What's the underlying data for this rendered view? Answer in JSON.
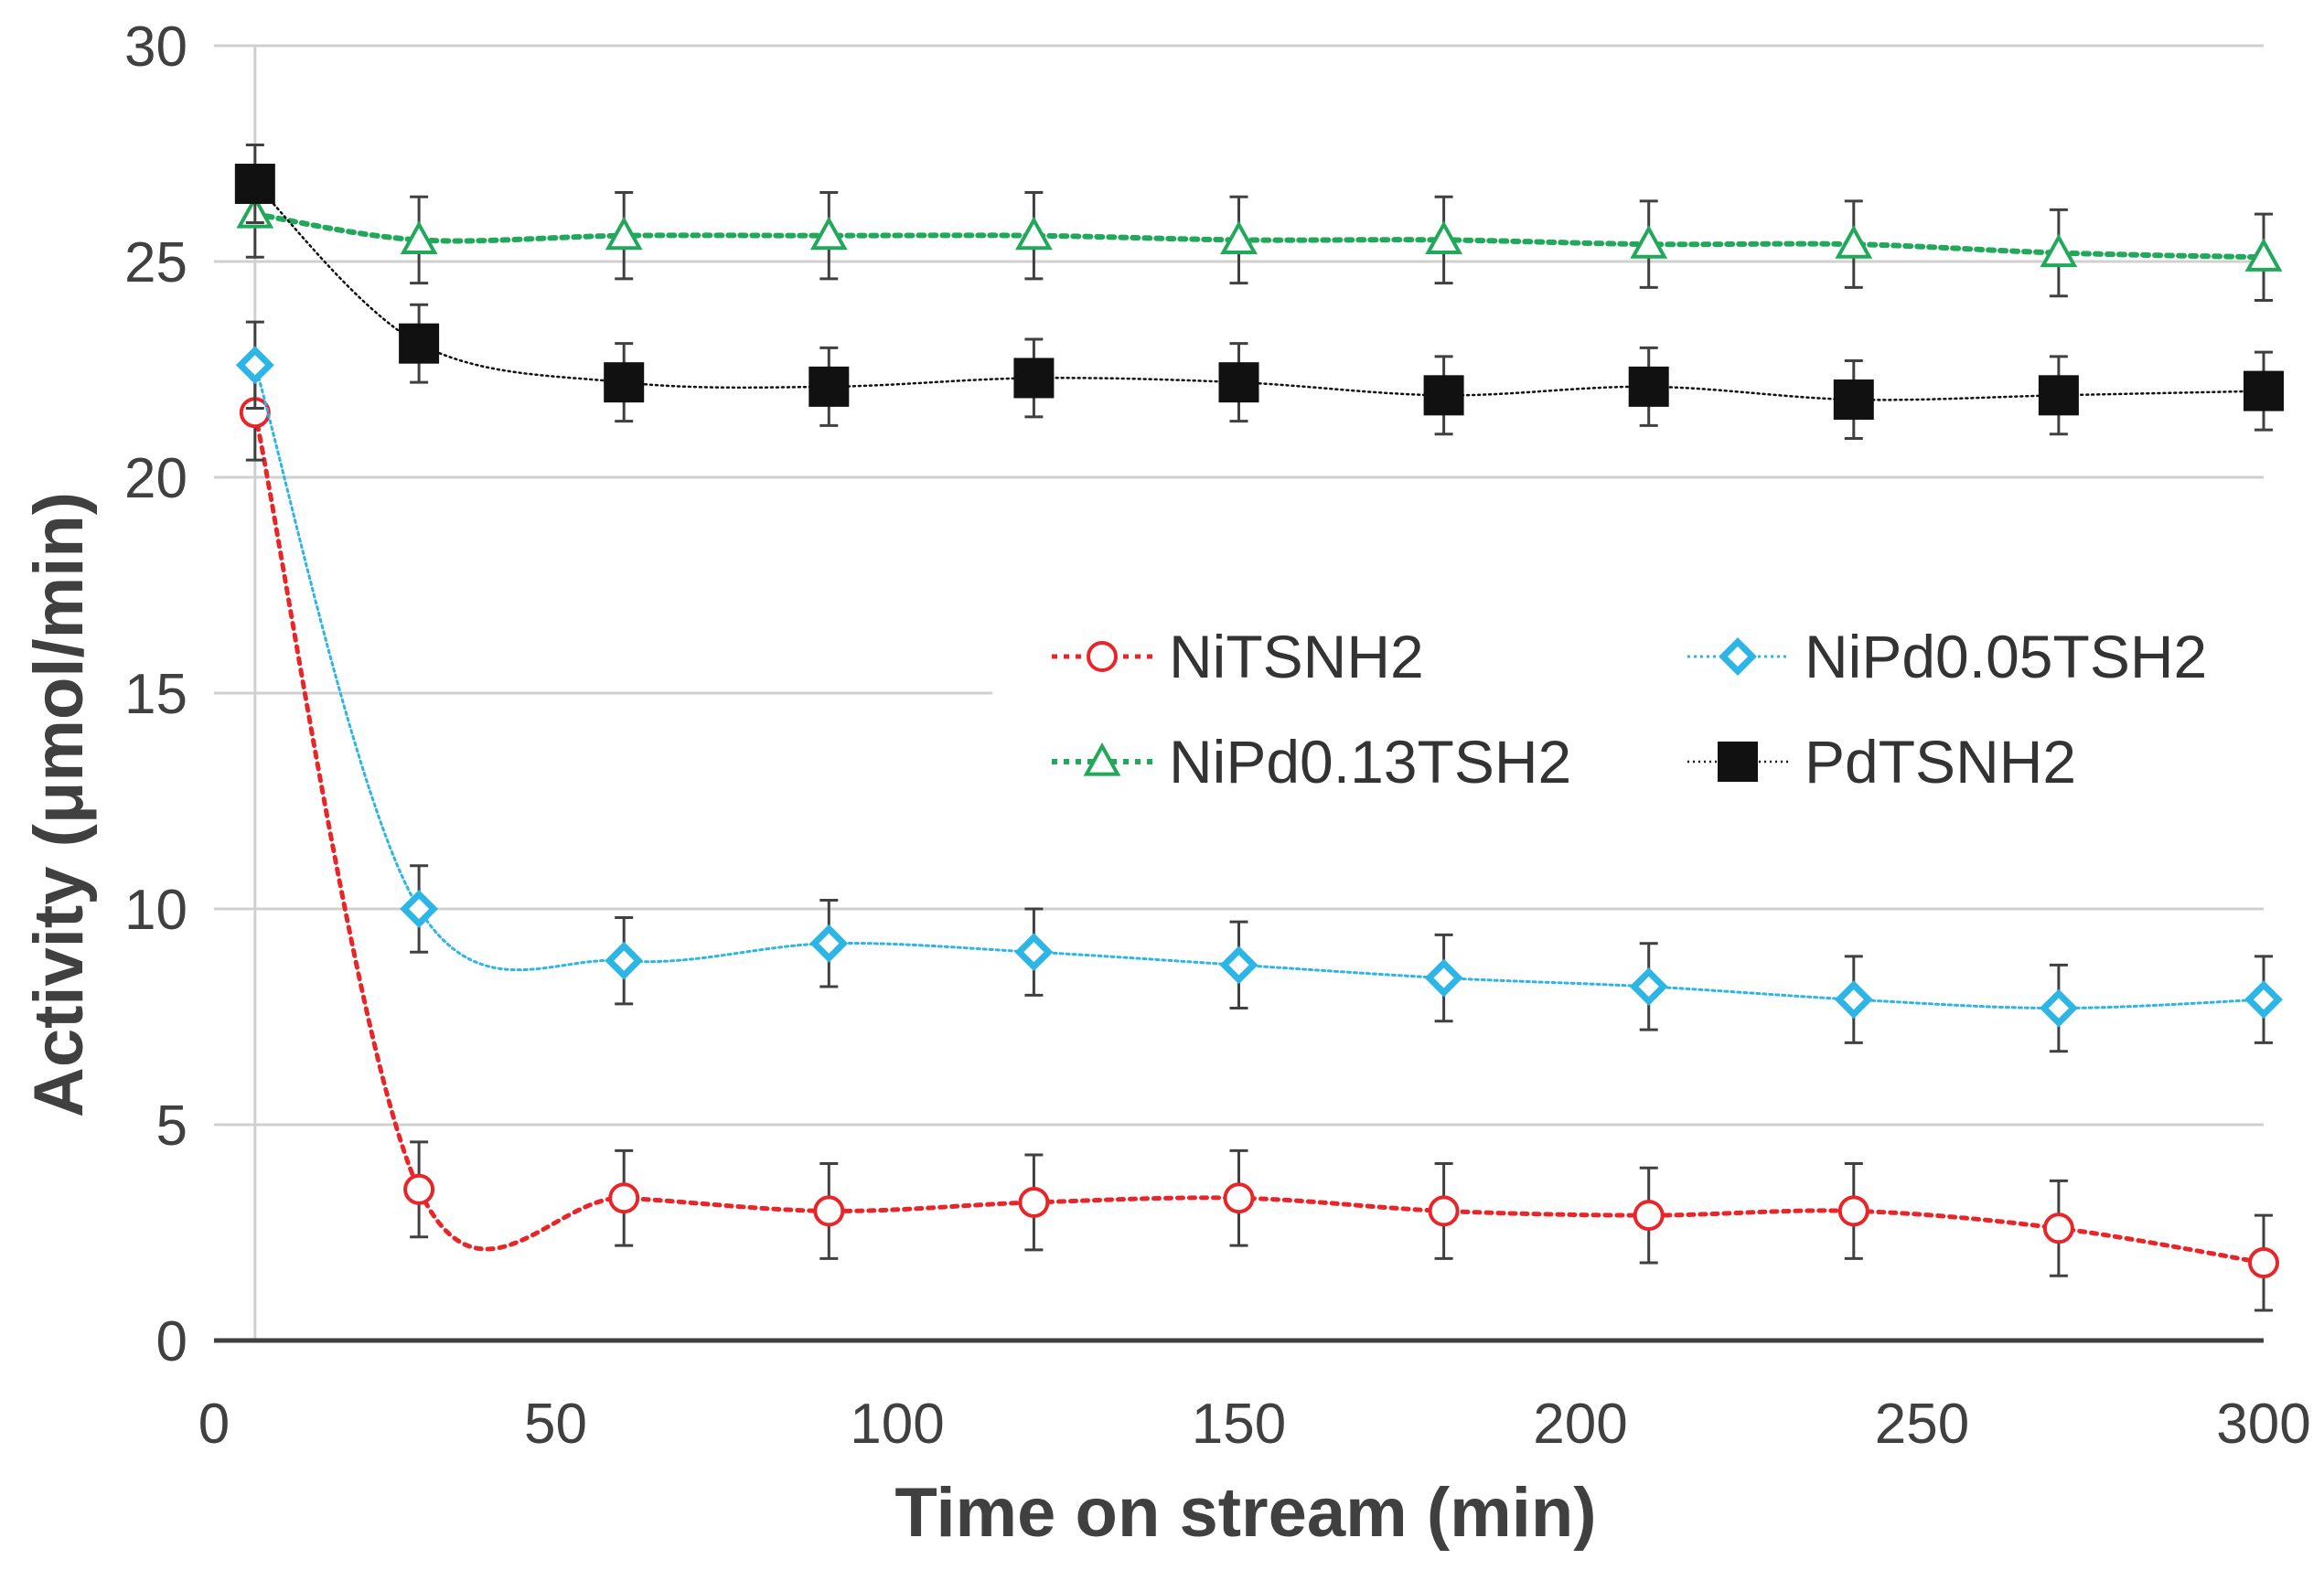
{
  "chart_data": {
    "type": "line",
    "title": "",
    "xlabel": "Time on stream (min)",
    "ylabel": "Activity (μmol/min)",
    "xlim": [
      0,
      300
    ],
    "ylim": [
      0,
      30
    ],
    "x_ticks": [
      "0",
      "50",
      "100",
      "150",
      "200",
      "250",
      "300"
    ],
    "y_ticks": [
      "0",
      "5",
      "10",
      "15",
      "20",
      "25",
      "30"
    ],
    "grid": "horizontal",
    "legend_position": "center-right",
    "x": [
      6,
      30,
      60,
      90,
      120,
      150,
      180,
      210,
      240,
      270,
      300
    ],
    "series": [
      {
        "name": "NiTSNH2",
        "color": "#e8262a",
        "marker": "circle",
        "line": "dotted",
        "values": [
          21.5,
          3.5,
          3.3,
          3.0,
          3.2,
          3.3,
          3.0,
          2.9,
          3.0,
          2.6,
          1.8
        ],
        "errors": [
          1.1,
          1.1,
          1.1,
          1.1,
          1.1,
          1.1,
          1.1,
          1.1,
          1.1,
          1.1,
          1.1
        ]
      },
      {
        "name": "NiPd0.05TSH2",
        "color": "#2db5e6",
        "marker": "diamond",
        "line": "dotted",
        "values": [
          22.6,
          10.0,
          8.8,
          9.2,
          9.0,
          8.7,
          8.4,
          8.2,
          7.9,
          7.7,
          7.9
        ],
        "errors": [
          1.0,
          1.0,
          1.0,
          1.0,
          1.0,
          1.0,
          1.0,
          1.0,
          1.0,
          1.0,
          1.0
        ]
      },
      {
        "name": "NiPd0.13TSH2",
        "color": "#22a85a",
        "marker": "triangle",
        "line": "dotted",
        "values": [
          26.1,
          25.5,
          25.6,
          25.6,
          25.6,
          25.5,
          25.5,
          25.4,
          25.4,
          25.2,
          25.1
        ],
        "errors": [
          1.0,
          1.0,
          1.0,
          1.0,
          1.0,
          1.0,
          1.0,
          1.0,
          1.0,
          1.0,
          1.0
        ]
      },
      {
        "name": "PdTSNH2",
        "color": "#111111",
        "marker": "square",
        "line": "dotted",
        "values": [
          26.8,
          23.1,
          22.2,
          22.1,
          22.3,
          22.2,
          21.9,
          22.1,
          21.8,
          21.9,
          22.0
        ],
        "errors": [
          0.9,
          0.9,
          0.9,
          0.9,
          0.9,
          0.9,
          0.9,
          0.9,
          0.9,
          0.9,
          0.9
        ]
      }
    ]
  }
}
